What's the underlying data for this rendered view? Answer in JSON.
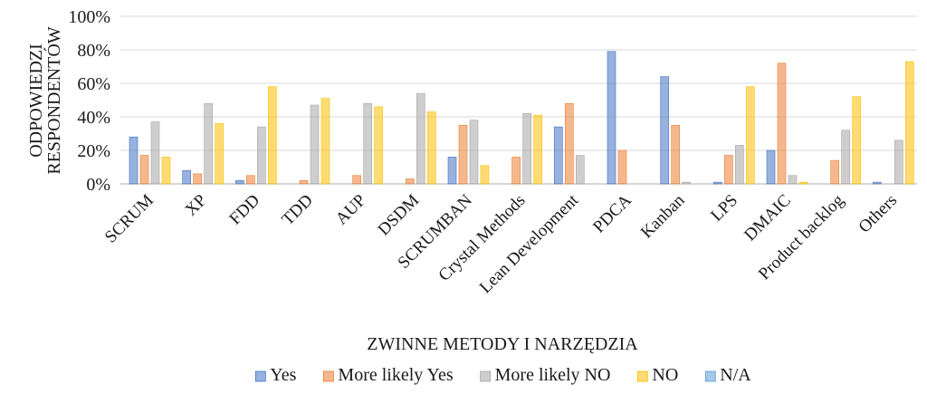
{
  "chart_data": {
    "type": "bar",
    "title": "",
    "xlabel": "ZWINNE METODY I NARZĘDZIA",
    "ylabel_lines": [
      "ODPOWIEDZI",
      "RESPONDENTÓW"
    ],
    "ylim": [
      0,
      100
    ],
    "yticks": [
      0,
      20,
      40,
      60,
      80,
      100
    ],
    "ytick_labels": [
      "0%",
      "20%",
      "40%",
      "60%",
      "80%",
      "100%"
    ],
    "grid": true,
    "legend_position": "bottom",
    "categories": [
      "SCRUM",
      "XP",
      "FDD",
      "TDD",
      "AUP",
      "DSDM",
      "SCRUMBAN",
      "Crystal Methods",
      "Lean Development",
      "PDCA",
      "Kanban",
      "LPS",
      "DMAIC",
      "Product backlog",
      "Others"
    ],
    "series": [
      {
        "name": "Yes",
        "color": "#4472c4",
        "values": [
          28,
          8,
          2,
          0,
          0,
          0,
          16,
          0,
          34,
          79,
          64,
          1,
          20,
          0,
          1
        ]
      },
      {
        "name": "More likely Yes",
        "color": "#ed7d31",
        "values": [
          17,
          6,
          5,
          2,
          5,
          3,
          35,
          16,
          48,
          20,
          35,
          17,
          72,
          14,
          0
        ]
      },
      {
        "name": "More likely NO",
        "color": "#a5a5a5",
        "values": [
          37,
          48,
          34,
          47,
          48,
          54,
          38,
          42,
          17,
          0,
          1,
          23,
          5,
          32,
          26
        ]
      },
      {
        "name": "NO",
        "color": "#ffc000",
        "values": [
          16,
          36,
          58,
          51,
          46,
          43,
          11,
          41,
          0,
          0,
          0,
          58,
          1,
          52,
          73
        ]
      },
      {
        "name": "N/A",
        "color": "#5b9bd5",
        "values": [
          0,
          0,
          0,
          0,
          0,
          0,
          0,
          0,
          0,
          0,
          0,
          0,
          0,
          0,
          0
        ]
      }
    ]
  }
}
